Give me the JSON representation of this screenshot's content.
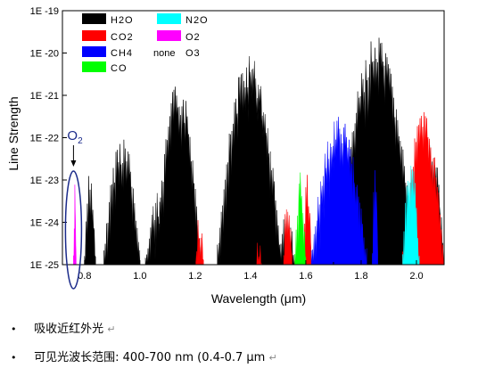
{
  "chart_data": {
    "type": "area",
    "xlabel": "Wavelength (μm)",
    "ylabel": "Line Strength",
    "xlim": [
      0.72,
      2.1
    ],
    "ylim": [
      -25,
      -19
    ],
    "y_scale": "log",
    "x_ticks": [
      "0.8",
      "1.0",
      "1.2",
      "1.4",
      "1.6",
      "1.8",
      "2.0"
    ],
    "y_ticks": [
      "1E -25",
      "1E -24",
      "1E -23",
      "1E -22",
      "1E -21",
      "1E -20",
      "1E -19"
    ],
    "legend": [
      {
        "name": "H2O",
        "color": "#000000"
      },
      {
        "name": "CO2",
        "color": "#ff0000"
      },
      {
        "name": "CH4",
        "color": "#0000ff"
      },
      {
        "name": "CO",
        "color": "#00ff00"
      },
      {
        "name": "N2O",
        "color": "#00ffff"
      },
      {
        "name": "O2",
        "color": "#ff00ff"
      },
      {
        "name": "O3",
        "color": "",
        "prefix": "none"
      }
    ],
    "annotation": {
      "text": "O",
      "sub": "2",
      "x": 0.76
    },
    "series": [
      {
        "name": "H2O",
        "color": "#000000",
        "bands": [
          {
            "lo": 0.8,
            "hi": 0.84,
            "peak": -22.7
          },
          {
            "lo": 0.87,
            "hi": 1.0,
            "peak": -21.8
          },
          {
            "lo": 1.02,
            "hi": 1.1,
            "peak": -23.3
          },
          {
            "lo": 1.06,
            "hi": 1.22,
            "peak": -20.6
          },
          {
            "lo": 1.28,
            "hi": 1.51,
            "peak": -20.0
          },
          {
            "lo": 1.5,
            "hi": 1.56,
            "peak": -23.5
          },
          {
            "lo": 1.72,
            "hi": 1.99,
            "peak": -19.6
          },
          {
            "lo": 2.0,
            "hi": 2.1,
            "peak": -21.8
          }
        ]
      },
      {
        "name": "CO2",
        "color": "#ff0000",
        "bands": [
          {
            "lo": 1.2,
            "hi": 1.23,
            "peak": -23.7
          },
          {
            "lo": 1.42,
            "hi": 1.44,
            "peak": -24.3
          },
          {
            "lo": 1.52,
            "hi": 1.55,
            "peak": -22.9
          },
          {
            "lo": 1.56,
            "hi": 1.58,
            "peak": -23.8
          },
          {
            "lo": 1.59,
            "hi": 1.62,
            "peak": -22.6
          },
          {
            "lo": 1.95,
            "hi": 2.1,
            "peak": -21.3
          }
        ]
      },
      {
        "name": "CH4",
        "color": "#0000ff",
        "bands": [
          {
            "lo": 1.62,
            "hi": 1.82,
            "peak": -21.4
          },
          {
            "lo": 1.84,
            "hi": 1.86,
            "peak": -21.9
          }
        ]
      },
      {
        "name": "CO",
        "color": "#00ff00",
        "bands": [
          {
            "lo": 1.56,
            "hi": 1.6,
            "peak": -22.7
          }
        ]
      },
      {
        "name": "N2O",
        "color": "#00ffff",
        "bands": [
          {
            "lo": 1.95,
            "hi": 2.01,
            "peak": -22.3
          }
        ]
      },
      {
        "name": "O2",
        "color": "#ff00ff",
        "bands": [
          {
            "lo": 0.76,
            "hi": 0.765,
            "peak": -23.0
          }
        ]
      }
    ]
  },
  "notes": [
    {
      "text": "吸收近红外光",
      "mark": "↵"
    },
    {
      "text": "可见光波长范围: 400-700 nm (0.4-0.7 μm",
      "mark": "↵"
    }
  ]
}
